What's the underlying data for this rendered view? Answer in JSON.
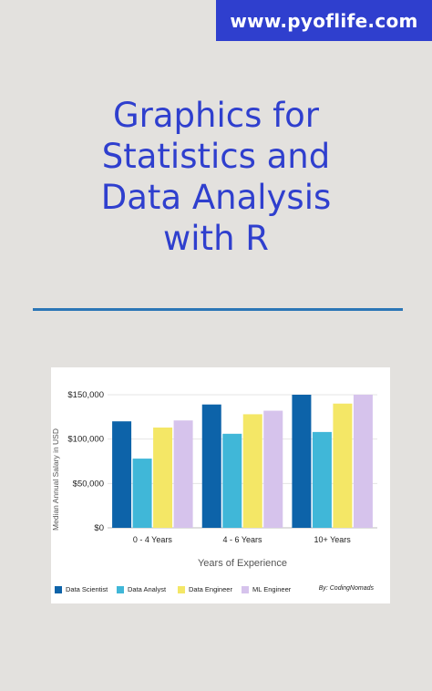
{
  "banner": {
    "url": "www.pyoflife.com"
  },
  "title": {
    "lines": [
      "Graphics for",
      "Statistics and",
      "Data Analysis",
      "with R"
    ]
  },
  "credit": "By: CodingNomads",
  "chart_data": {
    "type": "bar",
    "categories": [
      "0 - 4 Years",
      "4 - 6 Years",
      "10+ Years"
    ],
    "series": [
      {
        "name": "Data Scientist",
        "values": [
          120000,
          139000,
          150000
        ],
        "color": "#0d63a9"
      },
      {
        "name": "Data Analyst",
        "values": [
          78000,
          106000,
          108000
        ],
        "color": "#40b7d8"
      },
      {
        "name": "Data Engineer",
        "values": [
          113000,
          128000,
          140000
        ],
        "color": "#f4e766"
      },
      {
        "name": "ML Engineer",
        "values": [
          121000,
          132000,
          150000
        ],
        "color": "#d6c3ec"
      }
    ],
    "xlabel": "Years of Experience",
    "ylabel": "Median Annual Salary in USD",
    "ylim": [
      0,
      150000
    ],
    "yticks": [
      0,
      50000,
      100000,
      150000
    ],
    "ytick_labels": [
      "$0",
      "$50,000",
      "$100,000",
      "$150,000"
    ],
    "grid": true,
    "legend_position": "bottom"
  }
}
